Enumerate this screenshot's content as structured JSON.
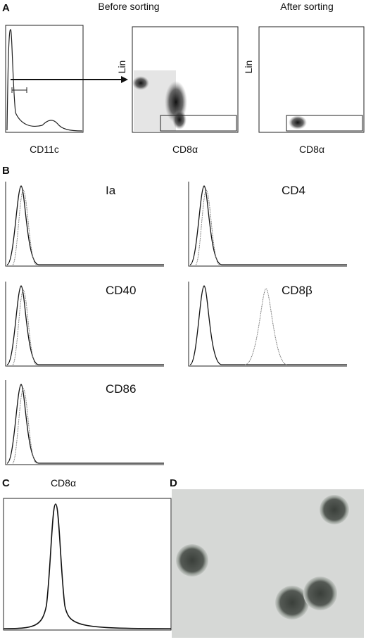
{
  "panel_a": {
    "label": "A",
    "before_title": "Before sorting",
    "after_title": "After sorting",
    "plots": [
      {
        "x_label": "CD11c"
      },
      {
        "x_label": "CD8α",
        "y_label": "Lin"
      },
      {
        "x_label": "CD8α",
        "y_label": "Lin"
      }
    ]
  },
  "panel_b": {
    "label": "B",
    "plots": [
      {
        "marker": "Ia"
      },
      {
        "marker": "CD4"
      },
      {
        "marker": "CD40"
      },
      {
        "marker": "CD8β"
      },
      {
        "marker": "CD86"
      }
    ]
  },
  "panel_c": {
    "label": "C",
    "marker": "CD8α"
  },
  "panel_d": {
    "label": "D"
  }
}
